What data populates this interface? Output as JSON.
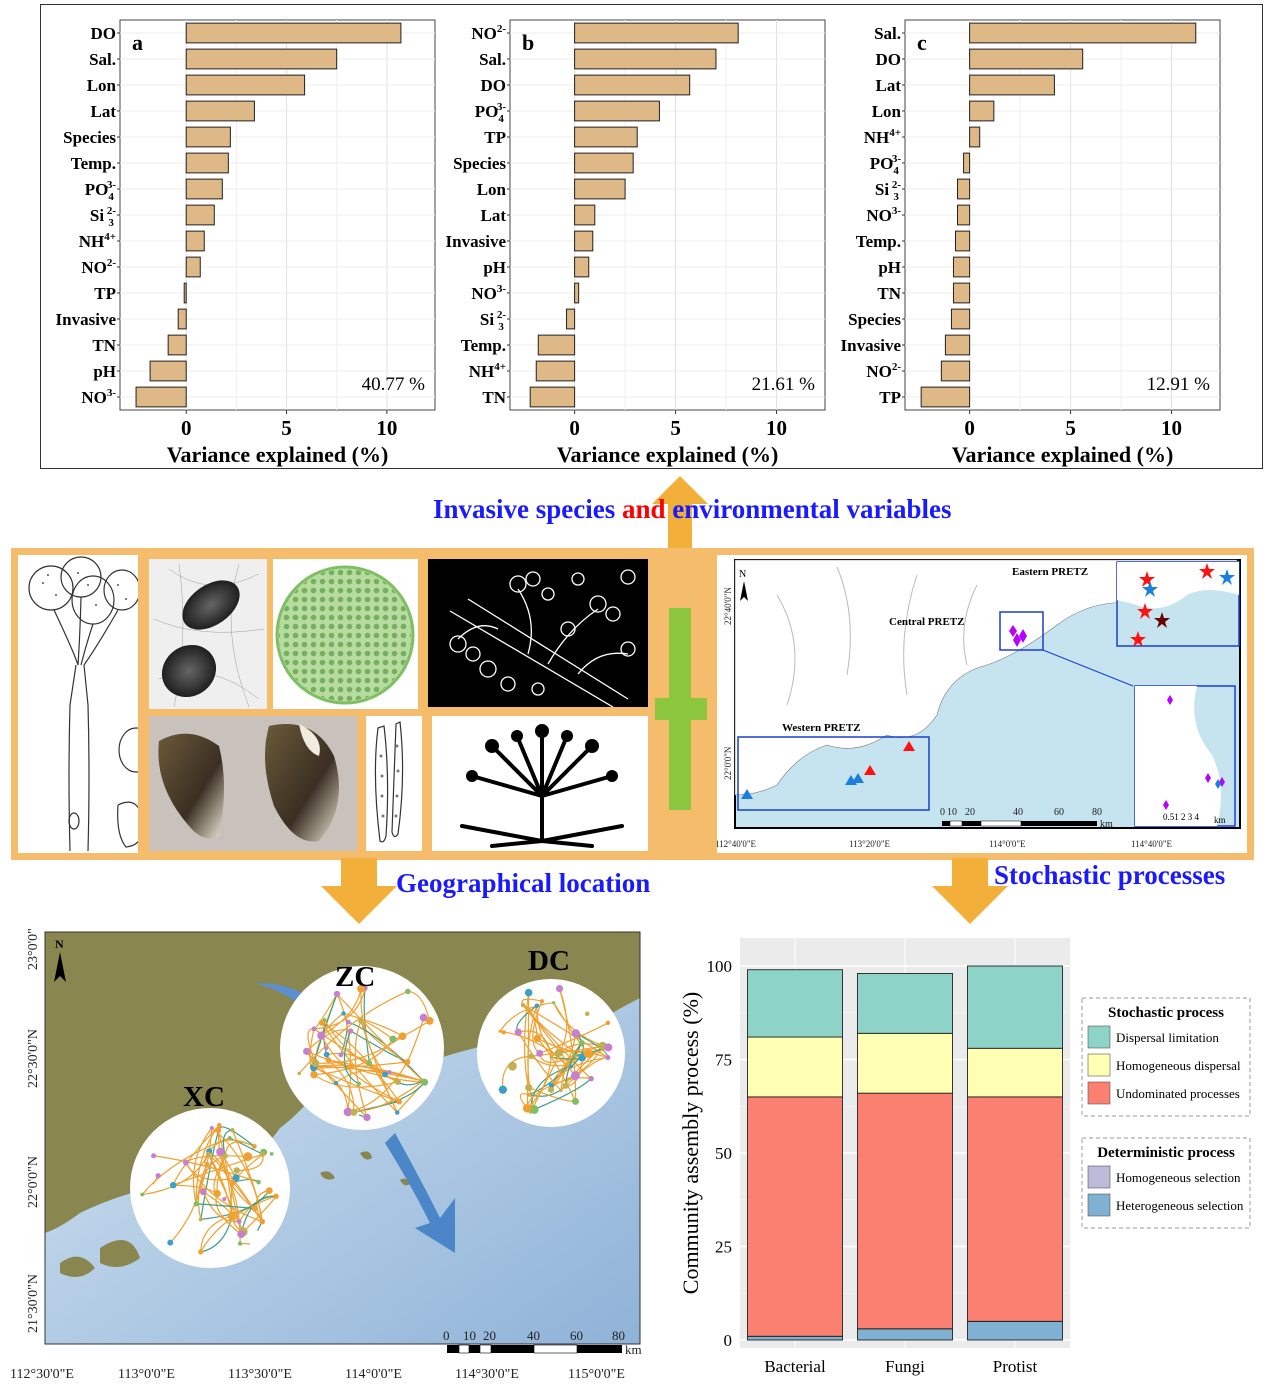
{
  "top_panels": {
    "xlabel": "Variance explained (%)",
    "xticks": [
      "0",
      "5",
      "10"
    ],
    "panels": [
      {
        "letter": "a",
        "total": "40.77 %"
      },
      {
        "letter": "b",
        "total": "21.61 %"
      },
      {
        "letter": "c",
        "total": "12.91 %"
      }
    ]
  },
  "captions": {
    "invasive_pre": "Invasive species ",
    "invasive_and": "and",
    "invasive_post": " environmental variables",
    "geo": "Geographical location",
    "stochastic": "Stochastic processes"
  },
  "region_map": {
    "labels": {
      "eastern": "Eastern PRETZ",
      "central": "Central PRETZ",
      "western": "Western PRETZ",
      "north": "N"
    },
    "lon_ticks": [
      "112°40'0\"E",
      "113°20'0\"E",
      "114°0'0\"E",
      "114°40'0\"E"
    ],
    "lat_ticks": [
      "22°40'0\"N",
      "22°0'0\"N"
    ],
    "scale": {
      "values": [
        "0",
        "10",
        "20",
        "40",
        "60",
        "80"
      ],
      "unit": "km"
    },
    "inset_scale": {
      "values": "0.51 2 3 4",
      "unit": "km"
    }
  },
  "network_map": {
    "sites": [
      "ZC",
      "DC",
      "XC"
    ],
    "north": "N",
    "lat_ticks": [
      "23°0'0\"N",
      "22°30'0\"N",
      "22°0'0\"N",
      "21°30'0\"N"
    ],
    "lon_ticks": [
      "112°30'0\"E",
      "113°0'0\"E",
      "113°30'0\"E",
      "114°0'0\"E",
      "114°30'0\"E",
      "115°0'0\"E"
    ],
    "scale": {
      "values": [
        "0",
        "10",
        "20",
        "40",
        "60",
        "80"
      ],
      "unit": "km"
    }
  },
  "legend": {
    "stochastic_title": "Stochastic process",
    "deterministic_title": "Deterministic process"
  },
  "colors": {
    "bar_fill": "#deb887",
    "dispersal_limitation": "#8dd3c7",
    "homogeneous_dispersal": "#ffffb3",
    "undominated": "#fb8072",
    "homogeneous_selection": "#bebada",
    "heterogeneous_selection": "#80b1d3",
    "frame_orange": "#f5bd6b",
    "arrow_orange": "#f2af3a",
    "caption_blue": "#1a1aff"
  },
  "chart_data": [
    {
      "type": "bar",
      "orientation": "horizontal",
      "panel": "a",
      "categories": [
        "DO",
        "Sal.",
        "Lon",
        "Lat",
        "Species",
        "Temp.",
        "PO43-",
        "Si32-",
        "NH4+",
        "NO2-",
        "TP",
        "Invasive",
        "TN",
        "pH",
        "NO3-"
      ],
      "values": [
        10.7,
        7.5,
        5.9,
        3.4,
        2.2,
        2.1,
        1.8,
        1.4,
        0.9,
        0.7,
        -0.1,
        -0.4,
        -0.9,
        -1.8,
        -2.5
      ],
      "xlabel": "Variance explained (%)",
      "xlim": [
        -3.3,
        12.4
      ],
      "annotation": "40.77 %"
    },
    {
      "type": "bar",
      "orientation": "horizontal",
      "panel": "b",
      "categories": [
        "NO2-",
        "Sal.",
        "DO",
        "PO43-",
        "TP",
        "Species",
        "Lon",
        "Lat",
        "Invasive",
        "pH",
        "NO3-",
        "Si32-",
        "Temp.",
        "NH4+",
        "TN"
      ],
      "values": [
        8.1,
        7.0,
        5.7,
        4.2,
        3.1,
        2.9,
        2.5,
        1.0,
        0.9,
        0.7,
        0.2,
        -0.4,
        -1.8,
        -1.9,
        -2.2
      ],
      "xlabel": "Variance explained (%)",
      "xlim": [
        -3.2,
        12.4
      ],
      "annotation": "21.61 %"
    },
    {
      "type": "bar",
      "orientation": "horizontal",
      "panel": "c",
      "categories": [
        "Sal.",
        "DO",
        "Lat",
        "Lon",
        "NH4+",
        "PO43-",
        "Si32-",
        "NO3-",
        "Temp.",
        "pH",
        "TN",
        "Species",
        "Invasive",
        "NO2-",
        "TP"
      ],
      "values": [
        11.2,
        5.6,
        4.2,
        1.2,
        0.5,
        -0.3,
        -0.6,
        -0.6,
        -0.7,
        -0.8,
        -0.8,
        -0.9,
        -1.2,
        -1.4,
        -2.4
      ],
      "xlabel": "Variance explained (%)",
      "xlim": [
        -3.2,
        12.4
      ],
      "annotation": "12.91 %"
    },
    {
      "type": "bar",
      "stacked": true,
      "categories": [
        "Bacterial",
        "Fungi",
        "Protist"
      ],
      "ylabel": "Community assembly process (%)",
      "ylim": [
        0,
        100
      ],
      "yticks": [
        0,
        25,
        50,
        75,
        100
      ],
      "series": [
        {
          "name": "Heterogeneous selection",
          "values": [
            1,
            3,
            5
          ]
        },
        {
          "name": "Homogeneous selection",
          "values": [
            0,
            0,
            0
          ]
        },
        {
          "name": "Undominated processes",
          "values": [
            64,
            63,
            60
          ]
        },
        {
          "name": "Homogeneous dispersal",
          "values": [
            16,
            16,
            13
          ]
        },
        {
          "name": "Dispersal limitation",
          "values": [
            18,
            16,
            22
          ]
        }
      ],
      "legend_groups": [
        {
          "title": "Stochastic process",
          "items": [
            "Dispersal limitation",
            "Homogeneous dispersal",
            "Undominated processes"
          ]
        },
        {
          "title": "Deterministic process",
          "items": [
            "Homogeneous selection",
            "Heterogeneous selection"
          ]
        }
      ],
      "legend_position": "right"
    }
  ]
}
